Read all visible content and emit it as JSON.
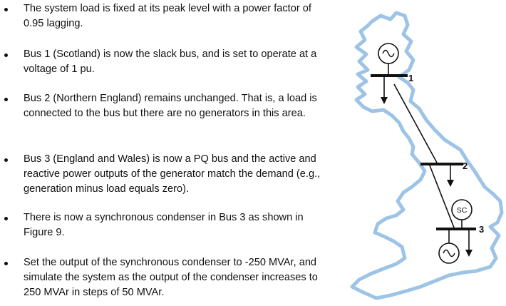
{
  "bullets": [
    "The system load is fixed at its peak level with a power factor of 0.95 lagging.",
    "Bus 1 (Scotland) is now the slack bus, and is set to operate at a voltage of 1 pu.",
    "Bus 2 (Northern England) remains unchanged. That is, a load is connected to the bus but there are no generators in this area.",
    "Bus 3 (England and Wales) is now a PQ bus and the active and reactive power outputs of the generator match the demand (e.g., generation minus load equals zero).",
    "There is now a synchronous condenser in Bus 3 as shown in Figure 9.",
    "Set the output of the synchronous condenser to -250 MVAr, and simulate the system as the output of the condenser increases to 250 MVAr in steps of 50 MVAr."
  ],
  "diagram": {
    "bus_labels": [
      "1",
      "2",
      "3"
    ],
    "condenser_label": "SC",
    "map_color": "#9dc3e6"
  }
}
